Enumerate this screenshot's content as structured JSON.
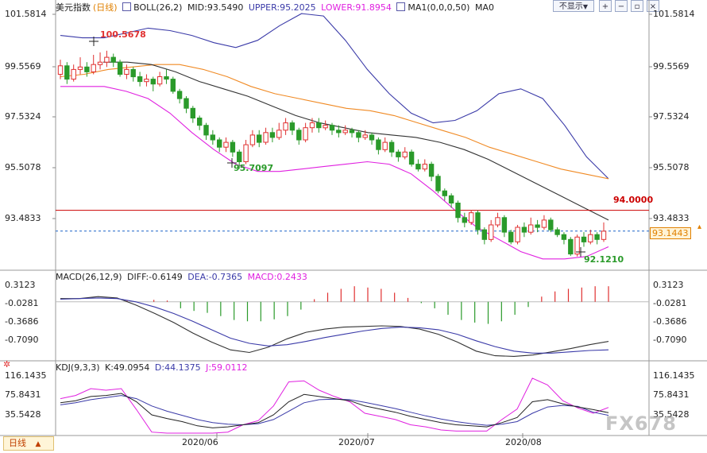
{
  "header": {
    "instrument": "美元指数",
    "period": "(日线)",
    "boll_label": "BOLL(26,2)",
    "boll_mid": "MID:93.5490",
    "boll_upper": "UPPER:95.2025",
    "boll_lower": "LOWER:91.8954",
    "ma_label": "MA1(0,0,0,50)",
    "ma_value": "MA0",
    "hide_button": "不显示",
    "hide_arrow": "▼"
  },
  "macd_header": {
    "label": "MACD(26,12,9)",
    "diff": "DIFF:-0.6149",
    "dea": "DEA:-0.7365",
    "macd": "MACD:0.2433"
  },
  "kdj_header": {
    "label": "KDJ(9,3,3)",
    "k": "K:49.0954",
    "d": "D:44.1375",
    "j": "J:59.0112"
  },
  "price_axis": [
    "101.5814",
    "99.5569",
    "97.5324",
    "95.5078",
    "93.4833"
  ],
  "macd_axis": [
    "0.3123",
    "-0.0281",
    "-0.3686",
    "-0.7090"
  ],
  "kdj_axis": [
    "116.1435",
    "75.8431",
    "35.5428"
  ],
  "x_labels": [
    "2020/06",
    "2020/07",
    "2020/08"
  ],
  "annotations": {
    "high": "100.5678",
    "low1": "95.7097",
    "low2": "92.1210",
    "hline": "94.0000",
    "current": "93.1443"
  },
  "footer": {
    "daily_tab": "日线",
    "daily_arrow": "▲",
    "watermark": "FX678"
  },
  "colors": {
    "bull": "#e03030",
    "bear": "#2a9a2a",
    "boll_mid": "#333333",
    "boll_upper": "#3a3aa8",
    "boll_lower": "#e020e0",
    "ma": "#f08a24",
    "hline": "#cc0000",
    "current": "#1a64c8",
    "accent_label": "#e08000"
  },
  "chart_data": [
    {
      "type": "candlestick",
      "title": "美元指数 (日线)",
      "ylim": [
        91.6,
        102.2
      ],
      "x_ticks": [
        "2020/06",
        "2020/07",
        "2020/08"
      ],
      "candles": [
        [
          99.6,
          99.95,
          100.2,
          99.4
        ],
        [
          99.95,
          99.4,
          100.1,
          99.2
        ],
        [
          99.4,
          99.8,
          100.0,
          99.3
        ],
        [
          99.8,
          99.9,
          100.3,
          99.6
        ],
        [
          99.9,
          99.7,
          100.1,
          99.5
        ],
        [
          99.7,
          100.0,
          100.4,
          99.6
        ],
        [
          100.0,
          100.1,
          100.5,
          99.8
        ],
        [
          100.1,
          100.3,
          100.57,
          99.9
        ],
        [
          100.3,
          100.1,
          100.45,
          99.9
        ],
        [
          100.1,
          99.6,
          100.2,
          99.5
        ],
        [
          99.6,
          99.8,
          100.0,
          99.4
        ],
        [
          99.8,
          99.5,
          99.9,
          99.3
        ],
        [
          99.5,
          99.3,
          99.7,
          99.1
        ],
        [
          99.3,
          99.4,
          99.6,
          99.1
        ],
        [
          99.4,
          99.2,
          99.5,
          98.9
        ],
        [
          99.2,
          99.5,
          99.7,
          99.1
        ],
        [
          99.5,
          99.4,
          99.8,
          99.2
        ],
        [
          99.4,
          98.9,
          99.5,
          98.8
        ],
        [
          98.9,
          98.6,
          99.0,
          98.4
        ],
        [
          98.6,
          98.2,
          98.7,
          98.0
        ],
        [
          98.2,
          97.8,
          98.3,
          97.6
        ],
        [
          97.8,
          97.5,
          97.9,
          97.3
        ],
        [
          97.5,
          97.1,
          97.6,
          96.9
        ],
        [
          97.1,
          96.9,
          97.3,
          96.7
        ],
        [
          96.9,
          96.6,
          97.0,
          96.4
        ],
        [
          96.6,
          96.8,
          97.0,
          96.4
        ],
        [
          96.8,
          96.4,
          96.9,
          96.2
        ],
        [
          96.4,
          96.0,
          96.5,
          95.71
        ],
        [
          96.0,
          96.7,
          96.9,
          95.9
        ],
        [
          96.7,
          97.1,
          97.3,
          96.6
        ],
        [
          97.1,
          96.8,
          97.3,
          96.6
        ],
        [
          96.8,
          97.2,
          97.4,
          96.7
        ],
        [
          97.2,
          97.0,
          97.4,
          96.8
        ],
        [
          97.0,
          97.3,
          97.6,
          96.9
        ],
        [
          97.3,
          97.6,
          97.8,
          97.1
        ],
        [
          97.6,
          97.3,
          97.7,
          97.1
        ],
        [
          97.3,
          96.9,
          97.4,
          96.7
        ],
        [
          96.9,
          97.4,
          97.6,
          96.8
        ],
        [
          97.4,
          97.6,
          97.8,
          97.2
        ],
        [
          97.6,
          97.4,
          97.8,
          97.2
        ],
        [
          97.4,
          97.5,
          97.7,
          97.3
        ],
        [
          97.5,
          97.3,
          97.6,
          97.1
        ],
        [
          97.3,
          97.2,
          97.5,
          97.0
        ],
        [
          97.2,
          97.3,
          97.5,
          97.1
        ],
        [
          97.3,
          97.2,
          97.4,
          97.0
        ],
        [
          97.2,
          97.0,
          97.3,
          96.8
        ],
        [
          97.0,
          97.1,
          97.3,
          96.9
        ],
        [
          97.1,
          96.9,
          97.2,
          96.7
        ],
        [
          96.9,
          96.5,
          97.0,
          96.3
        ],
        [
          96.5,
          96.8,
          97.0,
          96.4
        ],
        [
          96.8,
          96.4,
          96.9,
          96.2
        ],
        [
          96.4,
          96.2,
          96.5,
          96.0
        ],
        [
          96.2,
          96.4,
          96.6,
          96.1
        ],
        [
          96.4,
          95.9,
          96.5,
          95.8
        ],
        [
          95.9,
          95.7,
          96.1,
          95.6
        ],
        [
          95.7,
          95.9,
          96.1,
          95.6
        ],
        [
          95.9,
          95.4,
          96.0,
          95.2
        ],
        [
          95.4,
          94.8,
          95.5,
          94.7
        ],
        [
          94.8,
          94.6,
          94.9,
          94.4
        ],
        [
          94.6,
          94.3,
          94.7,
          94.1
        ],
        [
          94.3,
          93.7,
          94.4,
          93.5
        ],
        [
          93.7,
          93.5,
          93.9,
          93.3
        ],
        [
          93.5,
          93.9,
          94.0,
          93.4
        ],
        [
          93.9,
          93.2,
          94.0,
          93.0
        ],
        [
          93.2,
          92.8,
          93.3,
          92.6
        ],
        [
          92.8,
          93.4,
          93.6,
          92.7
        ],
        [
          93.4,
          93.7,
          93.9,
          93.3
        ],
        [
          93.7,
          93.1,
          93.8,
          92.9
        ],
        [
          93.1,
          92.7,
          93.2,
          92.6
        ],
        [
          92.7,
          93.3,
          93.4,
          92.6
        ],
        [
          93.3,
          93.1,
          93.5,
          92.9
        ],
        [
          93.1,
          93.4,
          93.7,
          93.0
        ],
        [
          93.4,
          93.3,
          93.6,
          93.1
        ],
        [
          93.3,
          93.6,
          93.8,
          93.2
        ],
        [
          93.6,
          93.2,
          93.7,
          93.1
        ],
        [
          93.2,
          93.0,
          93.3,
          92.9
        ],
        [
          93.0,
          92.8,
          93.1,
          92.6
        ],
        [
          92.8,
          92.2,
          92.9,
          92.12
        ],
        [
          92.2,
          92.9,
          93.0,
          92.1
        ],
        [
          92.9,
          92.7,
          93.1,
          92.5
        ],
        [
          92.7,
          93.0,
          93.2,
          92.6
        ],
        [
          93.0,
          92.8,
          93.1,
          92.6
        ],
        [
          92.8,
          93.14,
          93.5,
          92.7
        ]
      ],
      "boll_upper": [
        101.2,
        101.1,
        101.1,
        101.3,
        101.5,
        101.4,
        101.2,
        100.9,
        100.7,
        101.0,
        101.6,
        102.1,
        102.0,
        101.0,
        99.8,
        98.8,
        98.0,
        97.6,
        97.7,
        98.1,
        98.8,
        99.0,
        98.6,
        97.5,
        96.2,
        95.3
      ],
      "boll_mid": [
        100.1,
        100.1,
        100.0,
        99.7,
        99.3,
        99.0,
        98.7,
        98.3,
        97.9,
        97.6,
        97.4,
        97.2,
        97.1,
        97.0,
        96.8,
        96.5,
        96.1,
        95.6,
        95.1,
        94.6,
        94.1,
        93.6
      ],
      "boll_lower": [
        99.1,
        99.1,
        99.1,
        98.9,
        98.6,
        98.0,
        97.2,
        96.5,
        95.9,
        95.6,
        95.6,
        95.7,
        95.8,
        95.9,
        96.0,
        95.9,
        95.5,
        94.8,
        94.0,
        93.3,
        92.8,
        92.3,
        92.0,
        92.0,
        92.1,
        92.5
      ],
      "ma": [
        99.5,
        99.6,
        99.8,
        99.9,
        100.0,
        100.0,
        99.8,
        99.5,
        99.1,
        98.8,
        98.6,
        98.4,
        98.2,
        98.1,
        97.9,
        97.6,
        97.3,
        97.0,
        96.6,
        96.3,
        96.0,
        95.7,
        95.5,
        95.3
      ],
      "hline": 94.0,
      "current": 93.1443
    },
    {
      "type": "macd",
      "title": "MACD(26,12,9)",
      "ylim": [
        -0.86,
        0.34
      ],
      "diff": [
        0.05,
        0.05,
        0.08,
        0.06,
        -0.05,
        -0.18,
        -0.32,
        -0.48,
        -0.62,
        -0.74,
        -0.78,
        -0.7,
        -0.57,
        -0.47,
        -0.42,
        -0.39,
        -0.38,
        -0.37,
        -0.38,
        -0.42,
        -0.5,
        -0.62,
        -0.76,
        -0.83,
        -0.84,
        -0.82,
        -0.77,
        -0.72,
        -0.66,
        -0.61
      ],
      "dea": [
        0.04,
        0.05,
        0.06,
        0.05,
        0.0,
        -0.08,
        -0.18,
        -0.3,
        -0.43,
        -0.56,
        -0.64,
        -0.68,
        -0.66,
        -0.61,
        -0.55,
        -0.5,
        -0.45,
        -0.41,
        -0.39,
        -0.4,
        -0.43,
        -0.5,
        -0.6,
        -0.69,
        -0.76,
        -0.79,
        -0.79,
        -0.77,
        -0.75,
        -0.74
      ],
      "hist": [
        0.02,
        0.0,
        0.03,
        0.02,
        -0.1,
        -0.14,
        -0.17,
        -0.22,
        -0.28,
        -0.3,
        -0.3,
        -0.27,
        -0.22,
        -0.12,
        0.04,
        0.14,
        0.2,
        0.24,
        0.22,
        0.2,
        0.14,
        0.06,
        -0.02,
        -0.1,
        -0.2,
        -0.28,
        -0.32,
        -0.34,
        -0.3,
        -0.2,
        -0.08,
        0.08,
        0.16,
        0.2,
        0.22,
        0.24,
        0.24
      ]
    },
    {
      "type": "kdj",
      "title": "KDJ(9,3,3)",
      "ylim": [
        10,
        130
      ],
      "k": [
        68,
        72,
        80,
        82,
        86,
        70,
        45,
        38,
        32,
        24,
        20,
        22,
        26,
        30,
        45,
        70,
        84,
        80,
        76,
        72,
        62,
        56,
        50,
        42,
        36,
        30,
        26,
        24,
        22,
        30,
        40,
        70,
        74,
        66,
        60,
        55,
        49
      ],
      "d": [
        64,
        68,
        74,
        78,
        82,
        76,
        62,
        52,
        44,
        36,
        30,
        27,
        26,
        28,
        36,
        52,
        68,
        74,
        75,
        74,
        69,
        63,
        57,
        50,
        43,
        37,
        32,
        28,
        25,
        27,
        32,
        48,
        60,
        63,
        61,
        50,
        44
      ],
      "j": [
        76,
        82,
        95,
        92,
        95,
        55,
        12,
        10,
        10,
        10,
        10,
        12,
        26,
        34,
        62,
        108,
        110,
        92,
        80,
        70,
        48,
        42,
        36,
        26,
        22,
        16,
        14,
        14,
        14,
        36,
        56,
        115,
        102,
        72,
        58,
        48,
        59
      ]
    }
  ]
}
